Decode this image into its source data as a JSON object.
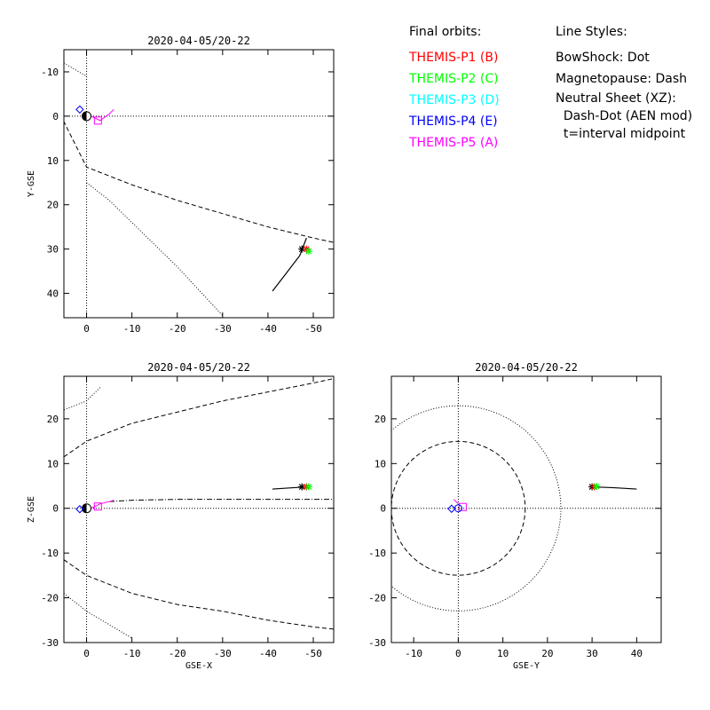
{
  "legend": {
    "orbits_title": "Final orbits:",
    "probes": [
      {
        "label": "THEMIS-P1 (B)",
        "color": "#ff0000"
      },
      {
        "label": "THEMIS-P2 (C)",
        "color": "#00ff00"
      },
      {
        "label": "THEMIS-P3 (D)",
        "color": "#00ffff"
      },
      {
        "label": "THEMIS-P4 (E)",
        "color": "#0000ff"
      },
      {
        "label": "THEMIS-P5 (A)",
        "color": "#ff00ff"
      }
    ],
    "styles_title": "Line Styles:",
    "styles": [
      "BowShock: Dot",
      "Magnetopause: Dash",
      "Neutral Sheet (XZ):",
      "  Dash-Dot (AEN mod)",
      "  t=interval midpoint"
    ]
  },
  "chart_data": [
    {
      "type": "scatter",
      "title": "2020-04-05/20-22",
      "xlabel": "",
      "ylabel": "Y-GSE",
      "xlim": [
        5,
        -54.5
      ],
      "ylim": [
        -15,
        45.5
      ],
      "xticks": [
        0,
        -10,
        -20,
        -30,
        -40,
        -50
      ],
      "yticks": [
        -10,
        0,
        10,
        20,
        30,
        40
      ],
      "magnetopause": [
        [
          10,
          -9
        ],
        [
          0,
          11.5
        ],
        [
          -5,
          13.5
        ],
        [
          -10,
          15.5
        ],
        [
          -20,
          19
        ],
        [
          -30,
          22
        ],
        [
          -40,
          25
        ],
        [
          -50,
          27.5
        ],
        [
          -54.5,
          28.5
        ]
      ],
      "bowshock": [
        [
          5,
          -12
        ],
        [
          0,
          -9
        ]
      ],
      "bowshock2": [
        [
          0,
          15
        ],
        [
          -5,
          19
        ],
        [
          -10,
          24
        ],
        [
          -15,
          29
        ],
        [
          -20,
          34
        ],
        [
          -25,
          39.5
        ],
        [
          -30,
          45
        ]
      ],
      "orbit": [
        [
          -41,
          39.5
        ],
        [
          -44,
          35.5
        ],
        [
          -47,
          31.5
        ],
        [
          -48.5,
          27.5
        ]
      ],
      "probe_markers": [
        {
          "x": -47.5,
          "y": 30,
          "marker": "asterisk",
          "color": "#000000"
        },
        {
          "x": -48.5,
          "y": 30,
          "marker": "asterisk",
          "color": "#ff0000"
        },
        {
          "x": -49,
          "y": 30.5,
          "marker": "asterisk",
          "color": "#00ff00"
        },
        {
          "x": 1.5,
          "y": -1.5,
          "marker": "diamond",
          "color": "#0000ff"
        },
        {
          "x": -2.5,
          "y": 1,
          "marker": "square",
          "color": "#ff00ff"
        }
      ],
      "p5_track": [
        [
          -1,
          0
        ],
        [
          -3,
          1
        ],
        [
          -5,
          -0.5
        ],
        [
          -6,
          -1.5
        ]
      ]
    },
    {
      "type": "scatter",
      "title": "2020-04-05/20-22",
      "xlabel": "GSE-X",
      "ylabel": "Z-GSE",
      "xlim": [
        5,
        -54.5
      ],
      "ylim": [
        -30,
        29.5
      ],
      "xticks": [
        0,
        -10,
        -20,
        -30,
        -40,
        -50
      ],
      "yticks": [
        -30,
        -20,
        -10,
        0,
        10,
        20
      ],
      "magnetopause": [
        [
          5,
          11.5
        ],
        [
          0,
          15
        ],
        [
          -5,
          17
        ],
        [
          -10,
          19
        ],
        [
          -20,
          21.5
        ],
        [
          -30,
          24
        ],
        [
          -40,
          26
        ],
        [
          -50,
          28
        ],
        [
          -54.5,
          29
        ]
      ],
      "magnetopause_lower": [
        [
          5,
          -11.5
        ],
        [
          0,
          -15
        ],
        [
          -5,
          -17
        ],
        [
          -10,
          -19
        ],
        [
          -20,
          -21.5
        ],
        [
          -30,
          -23
        ],
        [
          -40,
          -25
        ],
        [
          -50,
          -26.5
        ],
        [
          -54.5,
          -27
        ]
      ],
      "bowshock": [
        [
          5,
          22
        ],
        [
          0,
          24
        ],
        [
          -3,
          27
        ]
      ],
      "bowshock_lower": [
        [
          5,
          -19
        ],
        [
          0,
          -23
        ],
        [
          -5,
          -26
        ],
        [
          -10,
          -29
        ]
      ],
      "neutral_sheet": [
        [
          -5,
          1.5
        ],
        [
          -10,
          1.8
        ],
        [
          -20,
          2
        ],
        [
          -30,
          2
        ],
        [
          -40,
          2
        ],
        [
          -54.5,
          2
        ]
      ],
      "orbit": [
        [
          -41,
          4.3
        ],
        [
          -44,
          4.5
        ],
        [
          -47,
          4.7
        ],
        [
          -48.5,
          4.8
        ]
      ],
      "probe_markers": [
        {
          "x": -47.5,
          "y": 4.8,
          "marker": "asterisk",
          "color": "#000000"
        },
        {
          "x": -48.5,
          "y": 4.8,
          "marker": "asterisk",
          "color": "#ff0000"
        },
        {
          "x": -49,
          "y": 4.8,
          "marker": "asterisk",
          "color": "#00ff00"
        },
        {
          "x": 1.5,
          "y": -0.2,
          "marker": "diamond",
          "color": "#0000ff"
        },
        {
          "x": -2.5,
          "y": 0.4,
          "marker": "square",
          "color": "#ff00ff"
        }
      ],
      "p5_track": [
        [
          -1,
          0
        ],
        [
          -3,
          1
        ],
        [
          -5,
          1.5
        ],
        [
          -6,
          1.8
        ]
      ]
    },
    {
      "type": "scatter",
      "title": "2020-04-05/20-22",
      "xlabel": "GSE-Y",
      "ylabel": "",
      "xlim": [
        -15,
        45.5
      ],
      "ylim": [
        -30,
        29.5
      ],
      "xticks": [
        -10,
        0,
        10,
        20,
        30,
        40
      ],
      "yticks": [
        -30,
        -20,
        -10,
        0,
        10,
        20
      ],
      "magnetopause_radius": 15,
      "bowshock_radius": 23,
      "orbit": [
        [
          30,
          4.8
        ],
        [
          35,
          4.6
        ],
        [
          40,
          4.3
        ]
      ],
      "probe_markers": [
        {
          "x": 30,
          "y": 4.8,
          "marker": "asterisk",
          "color": "#000000"
        },
        {
          "x": 30.5,
          "y": 4.8,
          "marker": "asterisk",
          "color": "#ff0000"
        },
        {
          "x": 31,
          "y": 4.9,
          "marker": "asterisk",
          "color": "#00ff00"
        },
        {
          "x": -1.5,
          "y": -0.1,
          "marker": "diamond",
          "color": "#0000ff"
        },
        {
          "x": 1,
          "y": 0.3,
          "marker": "square",
          "color": "#ff00ff"
        },
        {
          "x": 0,
          "y": 0,
          "marker": "circle",
          "color": "#0000ff"
        }
      ],
      "p5_track": [
        [
          0,
          1
        ],
        [
          -1,
          2
        ]
      ]
    }
  ]
}
